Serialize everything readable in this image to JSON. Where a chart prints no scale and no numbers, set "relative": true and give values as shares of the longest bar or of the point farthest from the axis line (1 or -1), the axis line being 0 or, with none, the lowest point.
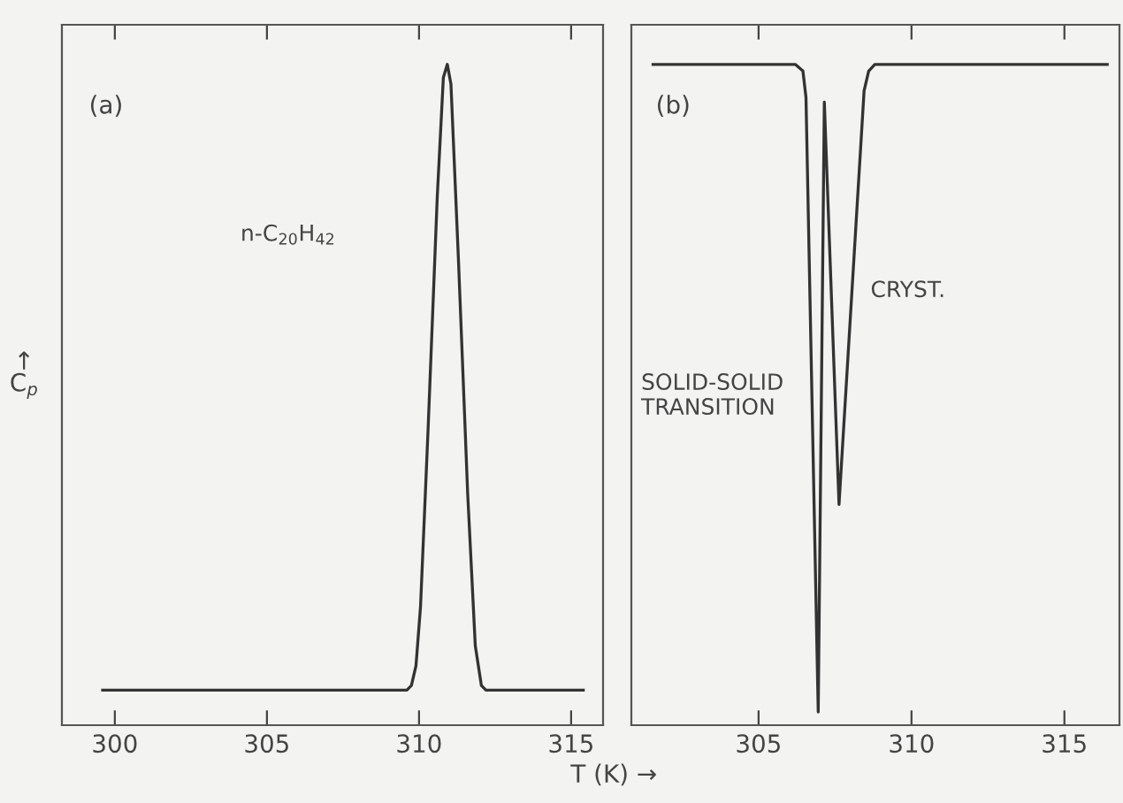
{
  "chart_data": [
    {
      "type": "line",
      "title": "(a)",
      "xlabel": "T (K) →",
      "ylabel": "↑\nC$_{p}$",
      "relative": true,
      "tick_labels": "x",
      "grid": false,
      "marker": "none",
      "line_style": "solid",
      "xlim": [
        298.26,
        316.05
      ],
      "xticks": [
        300,
        305,
        310,
        315
      ],
      "annotations": [
        "n-C$_{20}$H$_{42}$"
      ],
      "series": [
        {
          "color": "#333333",
          "x": [
            299.6,
            309.6,
            309.75,
            309.9,
            310.05,
            310.3,
            310.6,
            310.8,
            310.93,
            311.05,
            311.3,
            311.6,
            311.85,
            312.05,
            312.2,
            315.4
          ],
          "values": [
            0.053,
            0.053,
            0.06,
            0.09,
            0.18,
            0.45,
            0.8,
            0.98,
            1.0,
            0.97,
            0.7,
            0.35,
            0.12,
            0.06,
            0.053,
            0.053
          ]
        }
      ]
    },
    {
      "type": "line",
      "title": "(b)",
      "relative": true,
      "tick_labels": "x",
      "grid": false,
      "marker": "none",
      "line_style": "solid",
      "xlim": [
        300.84,
        316.8
      ],
      "xticks": [
        305,
        310,
        315
      ],
      "annotations": [
        "SOLID-SOLID\nTRANSITION",
        "CRYST."
      ],
      "series": [
        {
          "color": "#333333",
          "x": [
            301.55,
            306.2,
            306.45,
            306.55,
            306.95,
            307.15,
            307.63,
            308.45,
            308.6,
            308.8,
            316.4
          ],
          "values": [
            1.0,
            1.0,
            0.99,
            0.95,
            0.02,
            0.943,
            0.334,
            0.96,
            0.99,
            1.0,
            1.0
          ]
        }
      ]
    }
  ]
}
